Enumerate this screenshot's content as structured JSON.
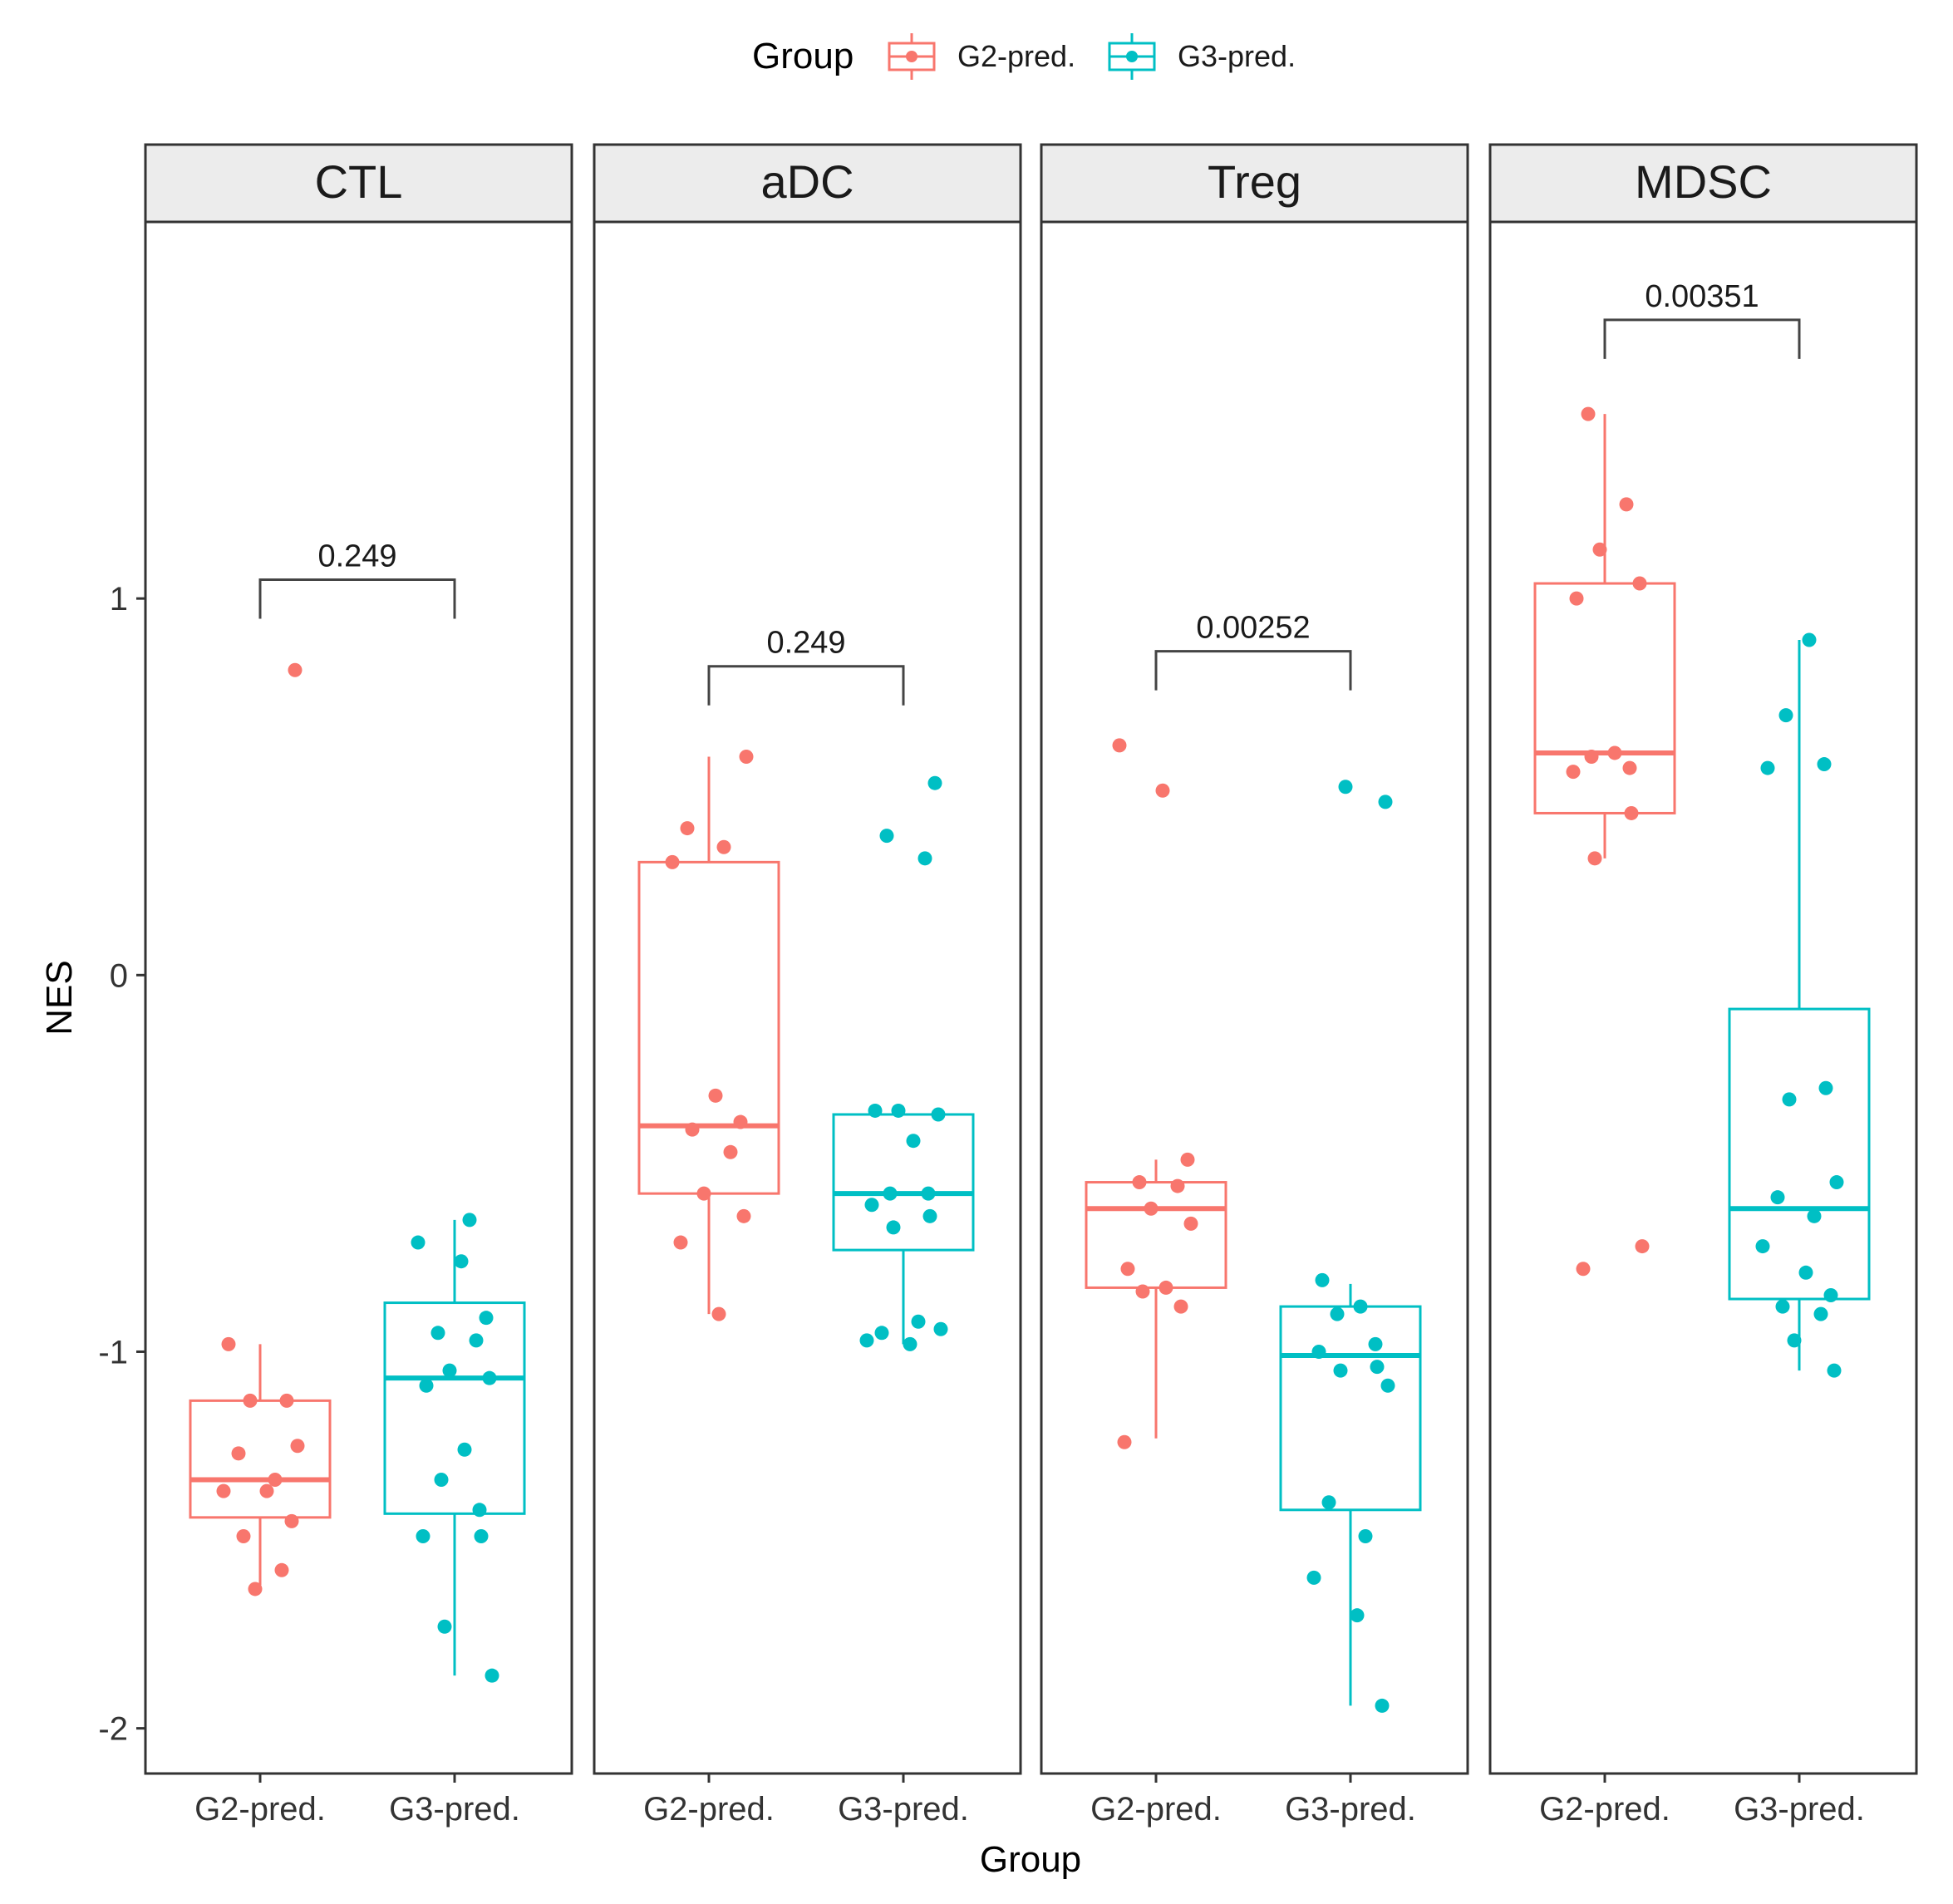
{
  "chart_data": {
    "type": "box",
    "title": "",
    "xlabel": "Group",
    "ylabel": "NES",
    "ylim": [
      -2.12,
      2.0
    ],
    "yticks": [
      -2,
      -1,
      0,
      1
    ],
    "ytick_labels": [
      "-2",
      "-1",
      "0",
      "1"
    ],
    "categories": [
      "G2-pred.",
      "G3-pred."
    ],
    "legend": {
      "title": "Group",
      "position": "top",
      "entries": [
        {
          "label": "G2-pred.",
          "color": "#f8766d"
        },
        {
          "label": "G3-pred.",
          "color": "#00bfc4"
        }
      ]
    },
    "panels": [
      {
        "name": "CTL",
        "p_value": "0.249",
        "bracket_y": 1.05,
        "groups": [
          {
            "group": "G2-pred.",
            "box": {
              "q1": -1.44,
              "median": -1.34,
              "q3": -1.13,
              "whisker_low": -1.62,
              "whisker_high": -0.98
            },
            "points": [
              -0.98,
              -1.13,
              -1.13,
              -1.25,
              -1.27,
              -1.34,
              -1.37,
              -1.37,
              -1.45,
              -1.49,
              -1.58,
              -1.63,
              0.81
            ]
          },
          {
            "group": "G3-pred.",
            "box": {
              "q1": -1.43,
              "median": -1.07,
              "q3": -0.87,
              "whisker_low": -1.86,
              "whisker_high": -0.65
            },
            "points": [
              -0.65,
              -0.71,
              -0.76,
              -0.91,
              -0.95,
              -0.97,
              -1.05,
              -1.07,
              -1.09,
              -1.26,
              -1.34,
              -1.42,
              -1.49,
              -1.49,
              -1.73,
              -1.86
            ]
          }
        ]
      },
      {
        "name": "aDC",
        "p_value": "0.249",
        "bracket_y": 0.82,
        "groups": [
          {
            "group": "G2-pred.",
            "box": {
              "q1": -0.58,
              "median": -0.4,
              "q3": 0.3,
              "whisker_low": -0.9,
              "whisker_high": 0.58
            },
            "points": [
              0.58,
              0.39,
              0.34,
              0.3,
              -0.32,
              -0.39,
              -0.41,
              -0.47,
              -0.58,
              -0.64,
              -0.71,
              -0.9
            ]
          },
          {
            "group": "G3-pred.",
            "box": {
              "q1": -0.73,
              "median": -0.58,
              "q3": -0.37,
              "whisker_low": -0.98,
              "whisker_high": -0.37
            },
            "points": [
              0.51,
              0.37,
              0.31,
              -0.36,
              -0.37,
              -0.36,
              -0.44,
              -0.58,
              -0.58,
              -0.61,
              -0.64,
              -0.67,
              -0.94,
              -0.95,
              -0.92,
              -0.97,
              -0.98
            ]
          }
        ]
      },
      {
        "name": "Treg",
        "p_value": "0.00252",
        "bracket_y": 0.86,
        "groups": [
          {
            "group": "G2-pred.",
            "box": {
              "q1": -0.83,
              "median": -0.62,
              "q3": -0.55,
              "whisker_low": -1.23,
              "whisker_high": -0.49
            },
            "points": [
              0.61,
              0.49,
              -0.49,
              -0.55,
              -0.56,
              -0.62,
              -0.66,
              -0.78,
              -0.83,
              -0.84,
              -0.88,
              -1.24
            ]
          },
          {
            "group": "G3-pred.",
            "box": {
              "q1": -1.42,
              "median": -1.01,
              "q3": -0.88,
              "whisker_low": -1.94,
              "whisker_high": -0.82
            },
            "points": [
              0.5,
              0.46,
              -0.81,
              -0.88,
              -0.9,
              -0.98,
              -1.0,
              -1.04,
              -1.05,
              -1.09,
              -1.4,
              -1.49,
              -1.6,
              -1.7,
              -1.94
            ]
          }
        ]
      },
      {
        "name": "MDSC",
        "p_value": "0.00351",
        "bracket_y": 1.74,
        "groups": [
          {
            "group": "G2-pred.",
            "box": {
              "q1": 0.43,
              "median": 0.59,
              "q3": 1.04,
              "whisker_low": 0.31,
              "whisker_high": 1.49
            },
            "points": [
              1.49,
              1.25,
              1.13,
              1.04,
              1.0,
              0.59,
              0.58,
              0.55,
              0.54,
              0.43,
              0.31,
              -0.72,
              -0.78
            ]
          },
          {
            "group": "G3-pred.",
            "box": {
              "q1": -0.86,
              "median": -0.62,
              "q3": -0.09,
              "whisker_low": -1.05,
              "whisker_high": 0.89
            },
            "points": [
              0.89,
              0.69,
              0.56,
              0.55,
              -0.3,
              -0.33,
              -0.55,
              -0.59,
              -0.64,
              -0.72,
              -0.79,
              -0.85,
              -0.88,
              -0.9,
              -0.97,
              -1.05
            ]
          }
        ]
      }
    ]
  }
}
